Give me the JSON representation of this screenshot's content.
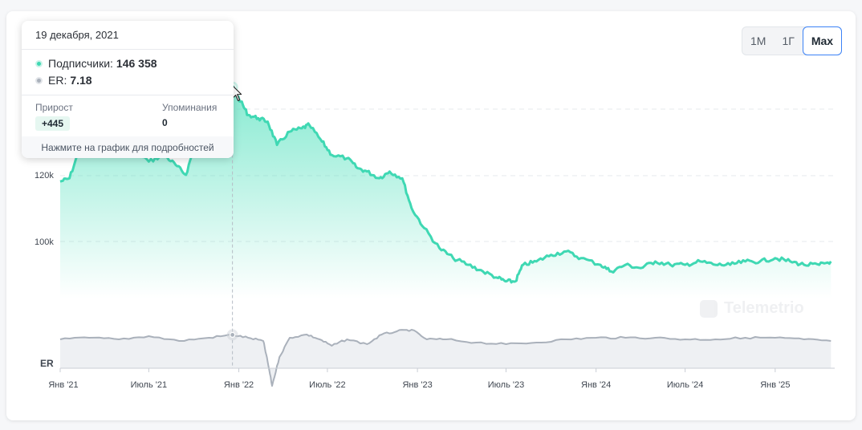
{
  "range_buttons": [
    {
      "label": "1M",
      "active": false
    },
    {
      "label": "1Г",
      "active": false
    },
    {
      "label": "Max",
      "active": true
    }
  ],
  "tooltip": {
    "date": "19 декабря, 2021",
    "subscribers_label": "Подписчики:",
    "subscribers_value": "146 358",
    "er_label": "ER:",
    "er_value": "7.18",
    "growth_label": "Прирост",
    "growth_value": "+445",
    "mentions_label": "Упоминания",
    "mentions_value": "0",
    "footer": "Нажмите на график для подробностей"
  },
  "watermark": "Telemetrio",
  "colors": {
    "subscribers_line": "#3fd8b3",
    "subscribers_fill": "#5fe3c2",
    "er_line": "#aab1bb",
    "er_fill": "#eef0f3",
    "grid": "#e6e8ec",
    "crosshair": "#b5bcc5"
  },
  "chart_data": {
    "type": "line",
    "x_ticks": [
      "Янв '21",
      "Июль '21",
      "Янв '22",
      "Июль '22",
      "Янв '23",
      "Июль '23",
      "Янв '24",
      "Июль '24",
      "Янв '25"
    ],
    "y_ticks": [
      "100k",
      "120k"
    ],
    "er_axis_label": "ER",
    "highlight": {
      "x": "19 декабря, 2021",
      "subscribers": 146358,
      "er": 7.18
    },
    "series": [
      {
        "name": "Подписчики",
        "points": [
          [
            "2021-01-01",
            118000
          ],
          [
            "2021-01-20",
            119000
          ],
          [
            "2021-02-10",
            128000
          ],
          [
            "2021-03-05",
            132000
          ],
          [
            "2021-04-01",
            131000
          ],
          [
            "2021-05-01",
            135000
          ],
          [
            "2021-06-01",
            128000
          ],
          [
            "2021-07-01",
            124000
          ],
          [
            "2021-08-01",
            126000
          ],
          [
            "2021-08-25",
            123000
          ],
          [
            "2021-09-15",
            120000
          ],
          [
            "2021-10-05",
            130000
          ],
          [
            "2021-11-01",
            138000
          ],
          [
            "2021-12-01",
            143000
          ],
          [
            "2021-12-19",
            146358
          ],
          [
            "2022-01-05",
            142000
          ],
          [
            "2022-01-20",
            138000
          ],
          [
            "2022-02-10",
            137000
          ],
          [
            "2022-03-01",
            136000
          ],
          [
            "2022-03-20",
            129000
          ],
          [
            "2022-04-15",
            133000
          ],
          [
            "2022-05-10",
            134000
          ],
          [
            "2022-05-25",
            135000
          ],
          [
            "2022-06-20",
            130000
          ],
          [
            "2022-07-10",
            126000
          ],
          [
            "2022-08-10",
            125000
          ],
          [
            "2022-09-01",
            122000
          ],
          [
            "2022-09-20",
            121000
          ],
          [
            "2022-10-15",
            119000
          ],
          [
            "2022-11-05",
            121000
          ],
          [
            "2022-12-01",
            119000
          ],
          [
            "2022-12-20",
            110000
          ],
          [
            "2023-01-15",
            104000
          ],
          [
            "2023-02-15",
            98000
          ],
          [
            "2023-03-15",
            95000
          ],
          [
            "2023-04-15",
            93000
          ],
          [
            "2023-05-15",
            91000
          ],
          [
            "2023-06-15",
            89000
          ],
          [
            "2023-07-01",
            88000
          ],
          [
            "2023-07-20",
            88000
          ],
          [
            "2023-08-05",
            93000
          ],
          [
            "2023-09-01",
            94000
          ],
          [
            "2023-10-01",
            96000
          ],
          [
            "2023-11-01",
            97000
          ],
          [
            "2023-12-01",
            95000
          ],
          [
            "2024-01-10",
            93000
          ],
          [
            "2024-02-01",
            91000
          ],
          [
            "2024-03-01",
            93000
          ],
          [
            "2024-04-01",
            92000
          ],
          [
            "2024-05-01",
            94000
          ],
          [
            "2024-06-01",
            93000
          ],
          [
            "2024-07-01",
            93000
          ],
          [
            "2024-08-01",
            94000
          ],
          [
            "2024-09-01",
            93000
          ],
          [
            "2024-10-01",
            93000
          ],
          [
            "2024-11-01",
            94000
          ],
          [
            "2024-12-01",
            94000
          ],
          [
            "2025-01-01",
            95000
          ],
          [
            "2025-02-01",
            94000
          ],
          [
            "2025-03-01",
            93000
          ],
          [
            "2025-04-01",
            93000
          ],
          [
            "2025-04-25",
            94000
          ]
        ]
      },
      {
        "name": "ER",
        "points": [
          [
            "2021-01-01",
            6.9
          ],
          [
            "2021-03-01",
            7.0
          ],
          [
            "2021-05-01",
            6.9
          ],
          [
            "2021-07-01",
            7.1
          ],
          [
            "2021-09-01",
            6.8
          ],
          [
            "2021-11-01",
            7.0
          ],
          [
            "2021-12-19",
            7.18
          ],
          [
            "2022-01-20",
            7.0
          ],
          [
            "2022-02-20",
            6.8
          ],
          [
            "2022-03-01",
            5.5
          ],
          [
            "2022-03-10",
            4.0
          ],
          [
            "2022-03-25",
            5.8
          ],
          [
            "2022-04-15",
            7.0
          ],
          [
            "2022-05-20",
            7.2
          ],
          [
            "2022-06-15",
            6.9
          ],
          [
            "2022-07-10",
            6.5
          ],
          [
            "2022-08-10",
            6.9
          ],
          [
            "2022-09-20",
            6.6
          ],
          [
            "2022-10-20",
            7.2
          ],
          [
            "2022-11-20",
            7.4
          ],
          [
            "2022-12-20",
            7.5
          ],
          [
            "2023-01-20",
            6.9
          ],
          [
            "2023-03-01",
            6.9
          ],
          [
            "2023-05-01",
            6.7
          ],
          [
            "2023-07-01",
            6.6
          ],
          [
            "2023-09-01",
            6.7
          ],
          [
            "2023-11-01",
            6.9
          ],
          [
            "2024-01-01",
            7.0
          ],
          [
            "2024-03-01",
            7.0
          ],
          [
            "2024-05-01",
            7.0
          ],
          [
            "2024-07-01",
            6.9
          ],
          [
            "2024-09-01",
            6.9
          ],
          [
            "2024-11-01",
            7.0
          ],
          [
            "2025-01-01",
            7.0
          ],
          [
            "2025-03-01",
            6.9
          ],
          [
            "2025-04-25",
            6.8
          ]
        ]
      }
    ]
  }
}
